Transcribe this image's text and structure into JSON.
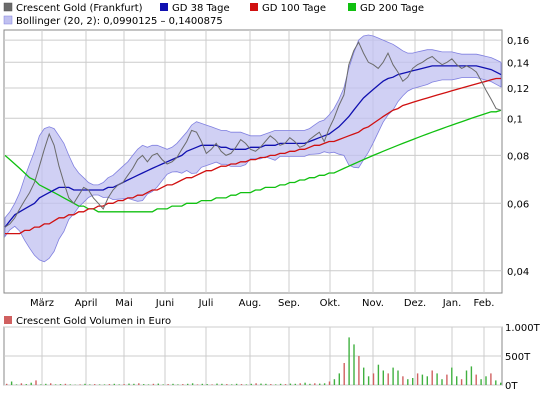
{
  "chart_data": [
    {
      "type": "line",
      "y_scale": "log",
      "ylim": [
        0.035,
        0.17
      ],
      "y_ticks": [
        0.04,
        0.06,
        0.08,
        0.1,
        0.12,
        0.14,
        0.16
      ],
      "y_tick_labels": [
        "0,04",
        "0,06",
        "0,08",
        "0,1",
        "0,12",
        "0,14",
        "0,16"
      ],
      "x_tick_labels": [
        "März",
        "April",
        "Mai",
        "Juni",
        "Juli",
        "Aug.",
        "Sep.",
        "Okt.",
        "Nov.",
        "Dez.",
        "Jan.",
        "Feb."
      ],
      "grid": true,
      "legend_position": "top",
      "series": [
        {
          "name": "Crescent Gold (Frankfurt)",
          "color": "#6b6b6b",
          "values": [
            0.052,
            0.053,
            0.055,
            0.058,
            0.061,
            0.064,
            0.068,
            0.075,
            0.083,
            0.091,
            0.085,
            0.075,
            0.068,
            0.062,
            0.06,
            0.063,
            0.066,
            0.065,
            0.062,
            0.06,
            0.058,
            0.062,
            0.065,
            0.067,
            0.068,
            0.071,
            0.074,
            0.078,
            0.08,
            0.077,
            0.08,
            0.081,
            0.078,
            0.076,
            0.077,
            0.079,
            0.083,
            0.087,
            0.093,
            0.092,
            0.087,
            0.081,
            0.083,
            0.086,
            0.082,
            0.08,
            0.081,
            0.084,
            0.088,
            0.086,
            0.083,
            0.082,
            0.084,
            0.087,
            0.09,
            0.088,
            0.085,
            0.086,
            0.089,
            0.087,
            0.084,
            0.085,
            0.088,
            0.09,
            0.092,
            0.087,
            0.094,
            0.1,
            0.108,
            0.115,
            0.138,
            0.15,
            0.158,
            0.148,
            0.14,
            0.138,
            0.135,
            0.14,
            0.148,
            0.138,
            0.132,
            0.125,
            0.128,
            0.135,
            0.138,
            0.14,
            0.143,
            0.145,
            0.141,
            0.138,
            0.14,
            0.143,
            0.138,
            0.135,
            0.137,
            0.135,
            0.132,
            0.125,
            0.118,
            0.112,
            0.106,
            0.105
          ]
        },
        {
          "name": "GD 38 Tage",
          "color": "#1010b0",
          "values": [
            0.052,
            0.054,
            0.056,
            0.057,
            0.058,
            0.059,
            0.06,
            0.062,
            0.063,
            0.064,
            0.065,
            0.066,
            0.066,
            0.066,
            0.065,
            0.065,
            0.065,
            0.065,
            0.065,
            0.065,
            0.065,
            0.066,
            0.066,
            0.067,
            0.068,
            0.069,
            0.07,
            0.071,
            0.072,
            0.073,
            0.074,
            0.075,
            0.076,
            0.077,
            0.078,
            0.079,
            0.08,
            0.082,
            0.083,
            0.084,
            0.085,
            0.085,
            0.085,
            0.085,
            0.084,
            0.084,
            0.083,
            0.083,
            0.083,
            0.083,
            0.084,
            0.084,
            0.084,
            0.085,
            0.085,
            0.085,
            0.086,
            0.086,
            0.086,
            0.086,
            0.086,
            0.086,
            0.087,
            0.088,
            0.089,
            0.09,
            0.091,
            0.093,
            0.095,
            0.098,
            0.101,
            0.105,
            0.109,
            0.113,
            0.116,
            0.119,
            0.122,
            0.125,
            0.127,
            0.128,
            0.13,
            0.131,
            0.132,
            0.133,
            0.134,
            0.135,
            0.136,
            0.137,
            0.137,
            0.137,
            0.137,
            0.137,
            0.137,
            0.137,
            0.137,
            0.137,
            0.137,
            0.136,
            0.135,
            0.134,
            0.132,
            0.13
          ]
        },
        {
          "name": "GD 100 Tage",
          "color": "#d01010",
          "values": [
            0.05,
            0.05,
            0.05,
            0.05,
            0.051,
            0.051,
            0.052,
            0.052,
            0.053,
            0.053,
            0.054,
            0.055,
            0.055,
            0.056,
            0.056,
            0.057,
            0.057,
            0.058,
            0.058,
            0.059,
            0.059,
            0.06,
            0.06,
            0.061,
            0.061,
            0.062,
            0.062,
            0.063,
            0.063,
            0.064,
            0.065,
            0.065,
            0.066,
            0.067,
            0.067,
            0.068,
            0.069,
            0.07,
            0.07,
            0.071,
            0.072,
            0.073,
            0.073,
            0.074,
            0.075,
            0.075,
            0.076,
            0.076,
            0.077,
            0.077,
            0.078,
            0.078,
            0.079,
            0.079,
            0.08,
            0.08,
            0.081,
            0.081,
            0.082,
            0.082,
            0.083,
            0.083,
            0.084,
            0.085,
            0.085,
            0.086,
            0.087,
            0.087,
            0.088,
            0.089,
            0.09,
            0.091,
            0.092,
            0.094,
            0.095,
            0.097,
            0.099,
            0.101,
            0.103,
            0.105,
            0.106,
            0.108,
            0.109,
            0.11,
            0.111,
            0.112,
            0.113,
            0.114,
            0.115,
            0.116,
            0.117,
            0.118,
            0.119,
            0.12,
            0.121,
            0.122,
            0.123,
            0.124,
            0.125,
            0.126,
            0.127,
            0.127
          ]
        },
        {
          "name": "GD 200 Tage",
          "color": "#10c010",
          "values": [
            0.08,
            0.078,
            0.076,
            0.074,
            0.072,
            0.07,
            0.069,
            0.067,
            0.066,
            0.065,
            0.064,
            0.063,
            0.062,
            0.061,
            0.06,
            0.059,
            0.059,
            0.058,
            0.058,
            0.057,
            0.057,
            0.057,
            0.057,
            0.057,
            0.057,
            0.057,
            0.057,
            0.057,
            0.057,
            0.057,
            0.057,
            0.058,
            0.058,
            0.058,
            0.059,
            0.059,
            0.059,
            0.06,
            0.06,
            0.06,
            0.061,
            0.061,
            0.061,
            0.062,
            0.062,
            0.062,
            0.063,
            0.063,
            0.064,
            0.064,
            0.064,
            0.065,
            0.065,
            0.066,
            0.066,
            0.066,
            0.067,
            0.067,
            0.068,
            0.068,
            0.069,
            0.069,
            0.07,
            0.07,
            0.071,
            0.071,
            0.072,
            0.072,
            0.073,
            0.074,
            0.075,
            0.076,
            0.077,
            0.078,
            0.079,
            0.08,
            0.081,
            0.082,
            0.083,
            0.084,
            0.085,
            0.086,
            0.087,
            0.088,
            0.089,
            0.09,
            0.091,
            0.092,
            0.093,
            0.094,
            0.095,
            0.096,
            0.097,
            0.098,
            0.099,
            0.1,
            0.101,
            0.102,
            0.103,
            0.104,
            0.104,
            0.105
          ]
        },
        {
          "name": "Bollinger (20, 2): 0,0990125 - 0,1400875",
          "color": "#9090ee",
          "upper": [
            0.055,
            0.057,
            0.06,
            0.064,
            0.07,
            0.076,
            0.082,
            0.09,
            0.094,
            0.095,
            0.094,
            0.09,
            0.086,
            0.08,
            0.075,
            0.072,
            0.07,
            0.068,
            0.067,
            0.067,
            0.068,
            0.07,
            0.071,
            0.073,
            0.075,
            0.077,
            0.08,
            0.083,
            0.085,
            0.084,
            0.085,
            0.085,
            0.084,
            0.083,
            0.084,
            0.086,
            0.089,
            0.092,
            0.096,
            0.098,
            0.097,
            0.096,
            0.095,
            0.094,
            0.093,
            0.093,
            0.092,
            0.092,
            0.092,
            0.091,
            0.09,
            0.09,
            0.09,
            0.091,
            0.092,
            0.093,
            0.093,
            0.093,
            0.093,
            0.093,
            0.093,
            0.093,
            0.094,
            0.096,
            0.098,
            0.099,
            0.102,
            0.106,
            0.112,
            0.12,
            0.135,
            0.148,
            0.16,
            0.164,
            0.165,
            0.164,
            0.162,
            0.16,
            0.158,
            0.156,
            0.153,
            0.15,
            0.148,
            0.148,
            0.149,
            0.15,
            0.151,
            0.151,
            0.15,
            0.149,
            0.149,
            0.149,
            0.148,
            0.147,
            0.147,
            0.147,
            0.147,
            0.146,
            0.145,
            0.144,
            0.142,
            0.14
          ]
        }
      ]
    },
    {
      "type": "bar",
      "series": [
        {
          "name": "Crescent Gold Volumen in Euro",
          "color": "#d06060",
          "secondary_color": "#40b040",
          "values": [
            20,
            60,
            10,
            30,
            15,
            40,
            80,
            10,
            20,
            30,
            10,
            15,
            20,
            10,
            5,
            10,
            20,
            10,
            15,
            10,
            10,
            15,
            20,
            10,
            15,
            25,
            20,
            30,
            15,
            10,
            20,
            25,
            10,
            15,
            20,
            10,
            15,
            20,
            30,
            10,
            20,
            15,
            10,
            25,
            20,
            15,
            10,
            20,
            15,
            10,
            20,
            30,
            25,
            20,
            15,
            10,
            20,
            15,
            25,
            20,
            30,
            40,
            20,
            30,
            25,
            30,
            60,
            100,
            200,
            380,
            820,
            700,
            500,
            300,
            150,
            200,
            350,
            250,
            200,
            300,
            250,
            150,
            100,
            120,
            200,
            180,
            150,
            250,
            200,
            100,
            180,
            300,
            150,
            100,
            250,
            320,
            180,
            100,
            150,
            200,
            80,
            40
          ]
        }
      ],
      "y_tick_labels": [
        "1.000T",
        "500T",
        "0T"
      ],
      "ylim": [
        0,
        1000
      ]
    }
  ],
  "colors": {
    "grid": "#cccccc",
    "plot_border": "#888888",
    "band_fill": "#c0c0f0",
    "band_stroke": "#8080e0"
  },
  "legend": {
    "price_label": "Crescent Gold (Frankfurt)",
    "ma38_label": "GD 38 Tage",
    "ma100_label": "GD 100 Tage",
    "ma200_label": "GD 200 Tage",
    "bollinger_label": "Bollinger (20, 2): 0,0990125 – 0,1400875",
    "volume_label": "Crescent Gold Volumen in Euro"
  }
}
